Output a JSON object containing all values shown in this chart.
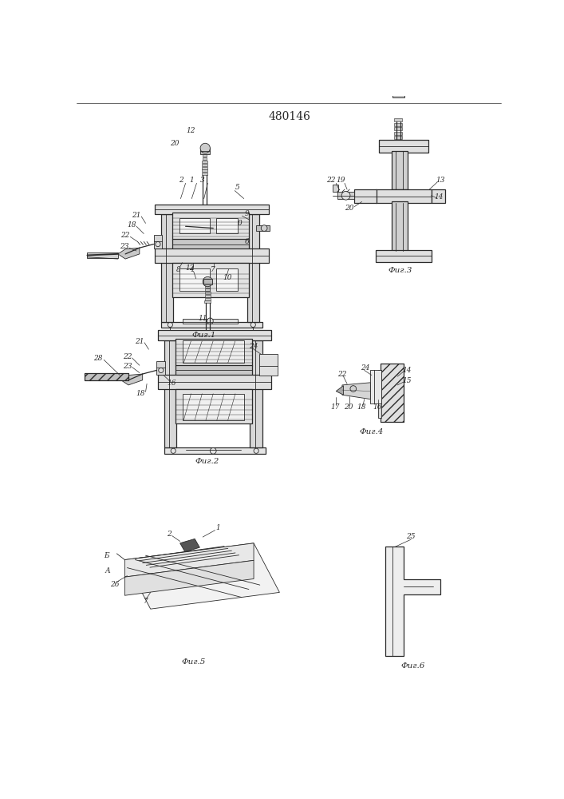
{
  "bg_color": "#ffffff",
  "line_color": "#2a2a2a",
  "patent_number": "480146",
  "fig_captions": [
    "Фиг.1",
    "Фиг.2",
    "Фиг.3",
    "Фиг.4",
    "Фиг.5",
    "Фиг.6"
  ],
  "lw_thin": 0.6,
  "lw_med": 0.9,
  "lw_thick": 1.3
}
